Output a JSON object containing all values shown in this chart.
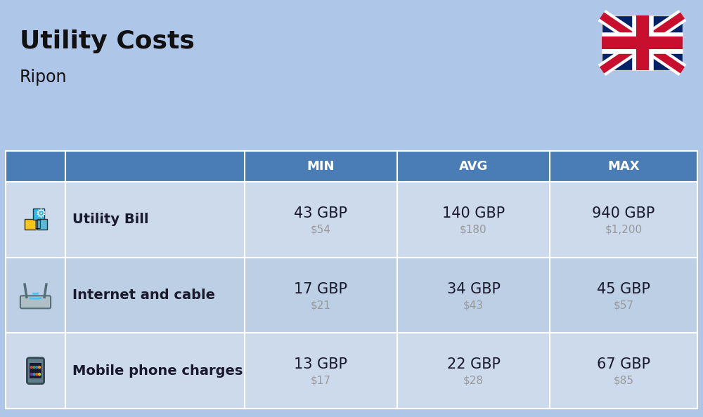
{
  "title": "Utility Costs",
  "subtitle": "Ripon",
  "background_color": "#aec6e8",
  "header_bg_color": "#4a7db5",
  "header_text_color": "#ffffff",
  "row_bg_color_odd": "#ccdaeb",
  "row_bg_color_even": "#bccfe5",
  "columns_header": [
    "MIN",
    "AVG",
    "MAX"
  ],
  "rows": [
    {
      "label": "Utility Bill",
      "min_gbp": "43 GBP",
      "min_usd": "$54",
      "avg_gbp": "140 GBP",
      "avg_usd": "$180",
      "max_gbp": "940 GBP",
      "max_usd": "$1,200"
    },
    {
      "label": "Internet and cable",
      "min_gbp": "17 GBP",
      "min_usd": "$21",
      "avg_gbp": "34 GBP",
      "avg_usd": "$43",
      "max_gbp": "45 GBP",
      "max_usd": "$57"
    },
    {
      "label": "Mobile phone charges",
      "min_gbp": "13 GBP",
      "min_usd": "$17",
      "avg_gbp": "22 GBP",
      "avg_usd": "$28",
      "max_gbp": "67 GBP",
      "max_usd": "$85"
    }
  ],
  "title_fontsize": 26,
  "subtitle_fontsize": 17,
  "header_fontsize": 13,
  "cell_fontsize_gbp": 15,
  "cell_fontsize_usd": 11,
  "label_fontsize": 14,
  "gbp_text_color": "#1a1a2e",
  "usd_text_color": "#999999",
  "label_text_color": "#1a1a2e",
  "title_color": "#111111",
  "divider_color": "#ffffff",
  "flag_blue": "#012169",
  "flag_red": "#C8102E"
}
